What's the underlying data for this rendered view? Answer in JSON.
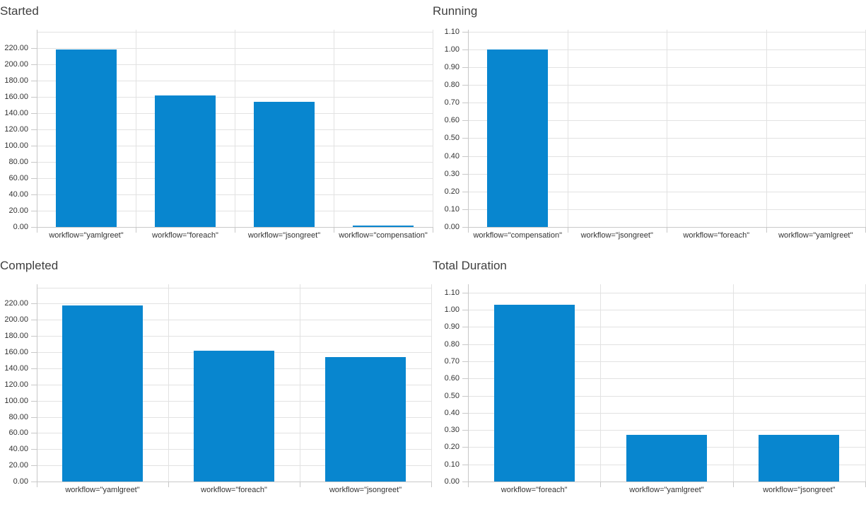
{
  "colors": {
    "bar": "#0886cf",
    "grid": "#e2e2e2",
    "axis": "#c8c8c8",
    "tick_text": "#333333",
    "title_text": "#3f3f3f",
    "background": "#ffffff"
  },
  "chart_data": [
    {
      "type": "bar",
      "title": "Started",
      "categories": [
        "workflow=\"yamlgreet\"",
        "workflow=\"foreach\"",
        "workflow=\"jsongreet\"",
        "workflow=\"compensation\""
      ],
      "values": [
        218,
        162,
        154,
        2
      ],
      "xlabel": "",
      "ylabel": "",
      "ylim": [
        0,
        242.5
      ],
      "ytick_labels": [
        "0.00",
        "20.00",
        "40.00",
        "60.00",
        "80.00",
        "100.00",
        "120.00",
        "140.00",
        "160.00",
        "180.00",
        "200.00",
        "220.00"
      ],
      "grid": true,
      "legend": false
    },
    {
      "type": "bar",
      "title": "Running",
      "categories": [
        "workflow=\"compensation\"",
        "workflow=\"jsongreet\"",
        "workflow=\"foreach\"",
        "workflow=\"yamlgreet\""
      ],
      "values": [
        1,
        0,
        0,
        0
      ],
      "xlabel": "",
      "ylabel": "",
      "ylim": [
        0,
        1.11
      ],
      "ytick_labels": [
        "0.00",
        "0.10",
        "0.20",
        "0.30",
        "0.40",
        "0.50",
        "0.60",
        "0.70",
        "0.80",
        "0.90",
        "1.00",
        "1.10"
      ],
      "grid": true,
      "legend": false
    },
    {
      "type": "bar",
      "title": "Completed",
      "categories": [
        "workflow=\"yamlgreet\"",
        "workflow=\"foreach\"",
        "workflow=\"jsongreet\""
      ],
      "values": [
        218,
        162,
        154
      ],
      "xlabel": "",
      "ylabel": "",
      "ylim": [
        0,
        244
      ],
      "ytick_labels": [
        "0.00",
        "20.00",
        "40.00",
        "60.00",
        "80.00",
        "100.00",
        "120.00",
        "140.00",
        "160.00",
        "180.00",
        "200.00",
        "220.00"
      ],
      "grid": true,
      "legend": false
    },
    {
      "type": "bar",
      "title": "Total Duration",
      "categories": [
        "workflow=\"foreach\"",
        "workflow=\"yamlgreet\"",
        "workflow=\"jsongreet\""
      ],
      "values": [
        1.03,
        0.27,
        0.27
      ],
      "xlabel": "",
      "ylabel": "",
      "ylim": [
        0,
        1.148
      ],
      "ytick_labels": [
        "0.00",
        "0.10",
        "0.20",
        "0.30",
        "0.40",
        "0.50",
        "0.60",
        "0.70",
        "0.80",
        "0.90",
        "1.00",
        "1.10"
      ],
      "grid": true,
      "legend": false
    }
  ]
}
